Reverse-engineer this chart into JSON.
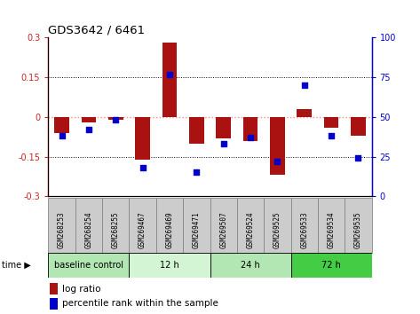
{
  "title": "GDS3642 / 6461",
  "samples": [
    "GSM268253",
    "GSM268254",
    "GSM268255",
    "GSM269467",
    "GSM269469",
    "GSM269471",
    "GSM269507",
    "GSM269524",
    "GSM269525",
    "GSM269533",
    "GSM269534",
    "GSM269535"
  ],
  "log_ratio": [
    -0.06,
    -0.02,
    -0.01,
    -0.16,
    0.28,
    -0.1,
    -0.08,
    -0.09,
    -0.22,
    0.03,
    -0.04,
    -0.07
  ],
  "percentile_rank": [
    38,
    42,
    48,
    18,
    77,
    15,
    33,
    37,
    22,
    70,
    38,
    24
  ],
  "group_data": [
    {
      "label": "baseline control",
      "start": 0,
      "end": 3,
      "color": "#b2e6b2"
    },
    {
      "label": "12 h",
      "start": 3,
      "end": 6,
      "color": "#d4f5d4"
    },
    {
      "label": "24 h",
      "start": 6,
      "end": 9,
      "color": "#b2e6b2"
    },
    {
      "label": "72 h",
      "start": 9,
      "end": 12,
      "color": "#44cc44"
    }
  ],
  "ylim_left": [
    -0.3,
    0.3
  ],
  "ylim_right": [
    0,
    100
  ],
  "yticks_left": [
    -0.3,
    -0.15,
    0,
    0.15,
    0.3
  ],
  "yticks_right": [
    0,
    25,
    50,
    75,
    100
  ],
  "bar_color": "#aa1111",
  "dot_color": "#0000cc",
  "hline_color": "#ff8888",
  "sample_box_color": "#cccccc",
  "sample_box_edge": "#888888"
}
